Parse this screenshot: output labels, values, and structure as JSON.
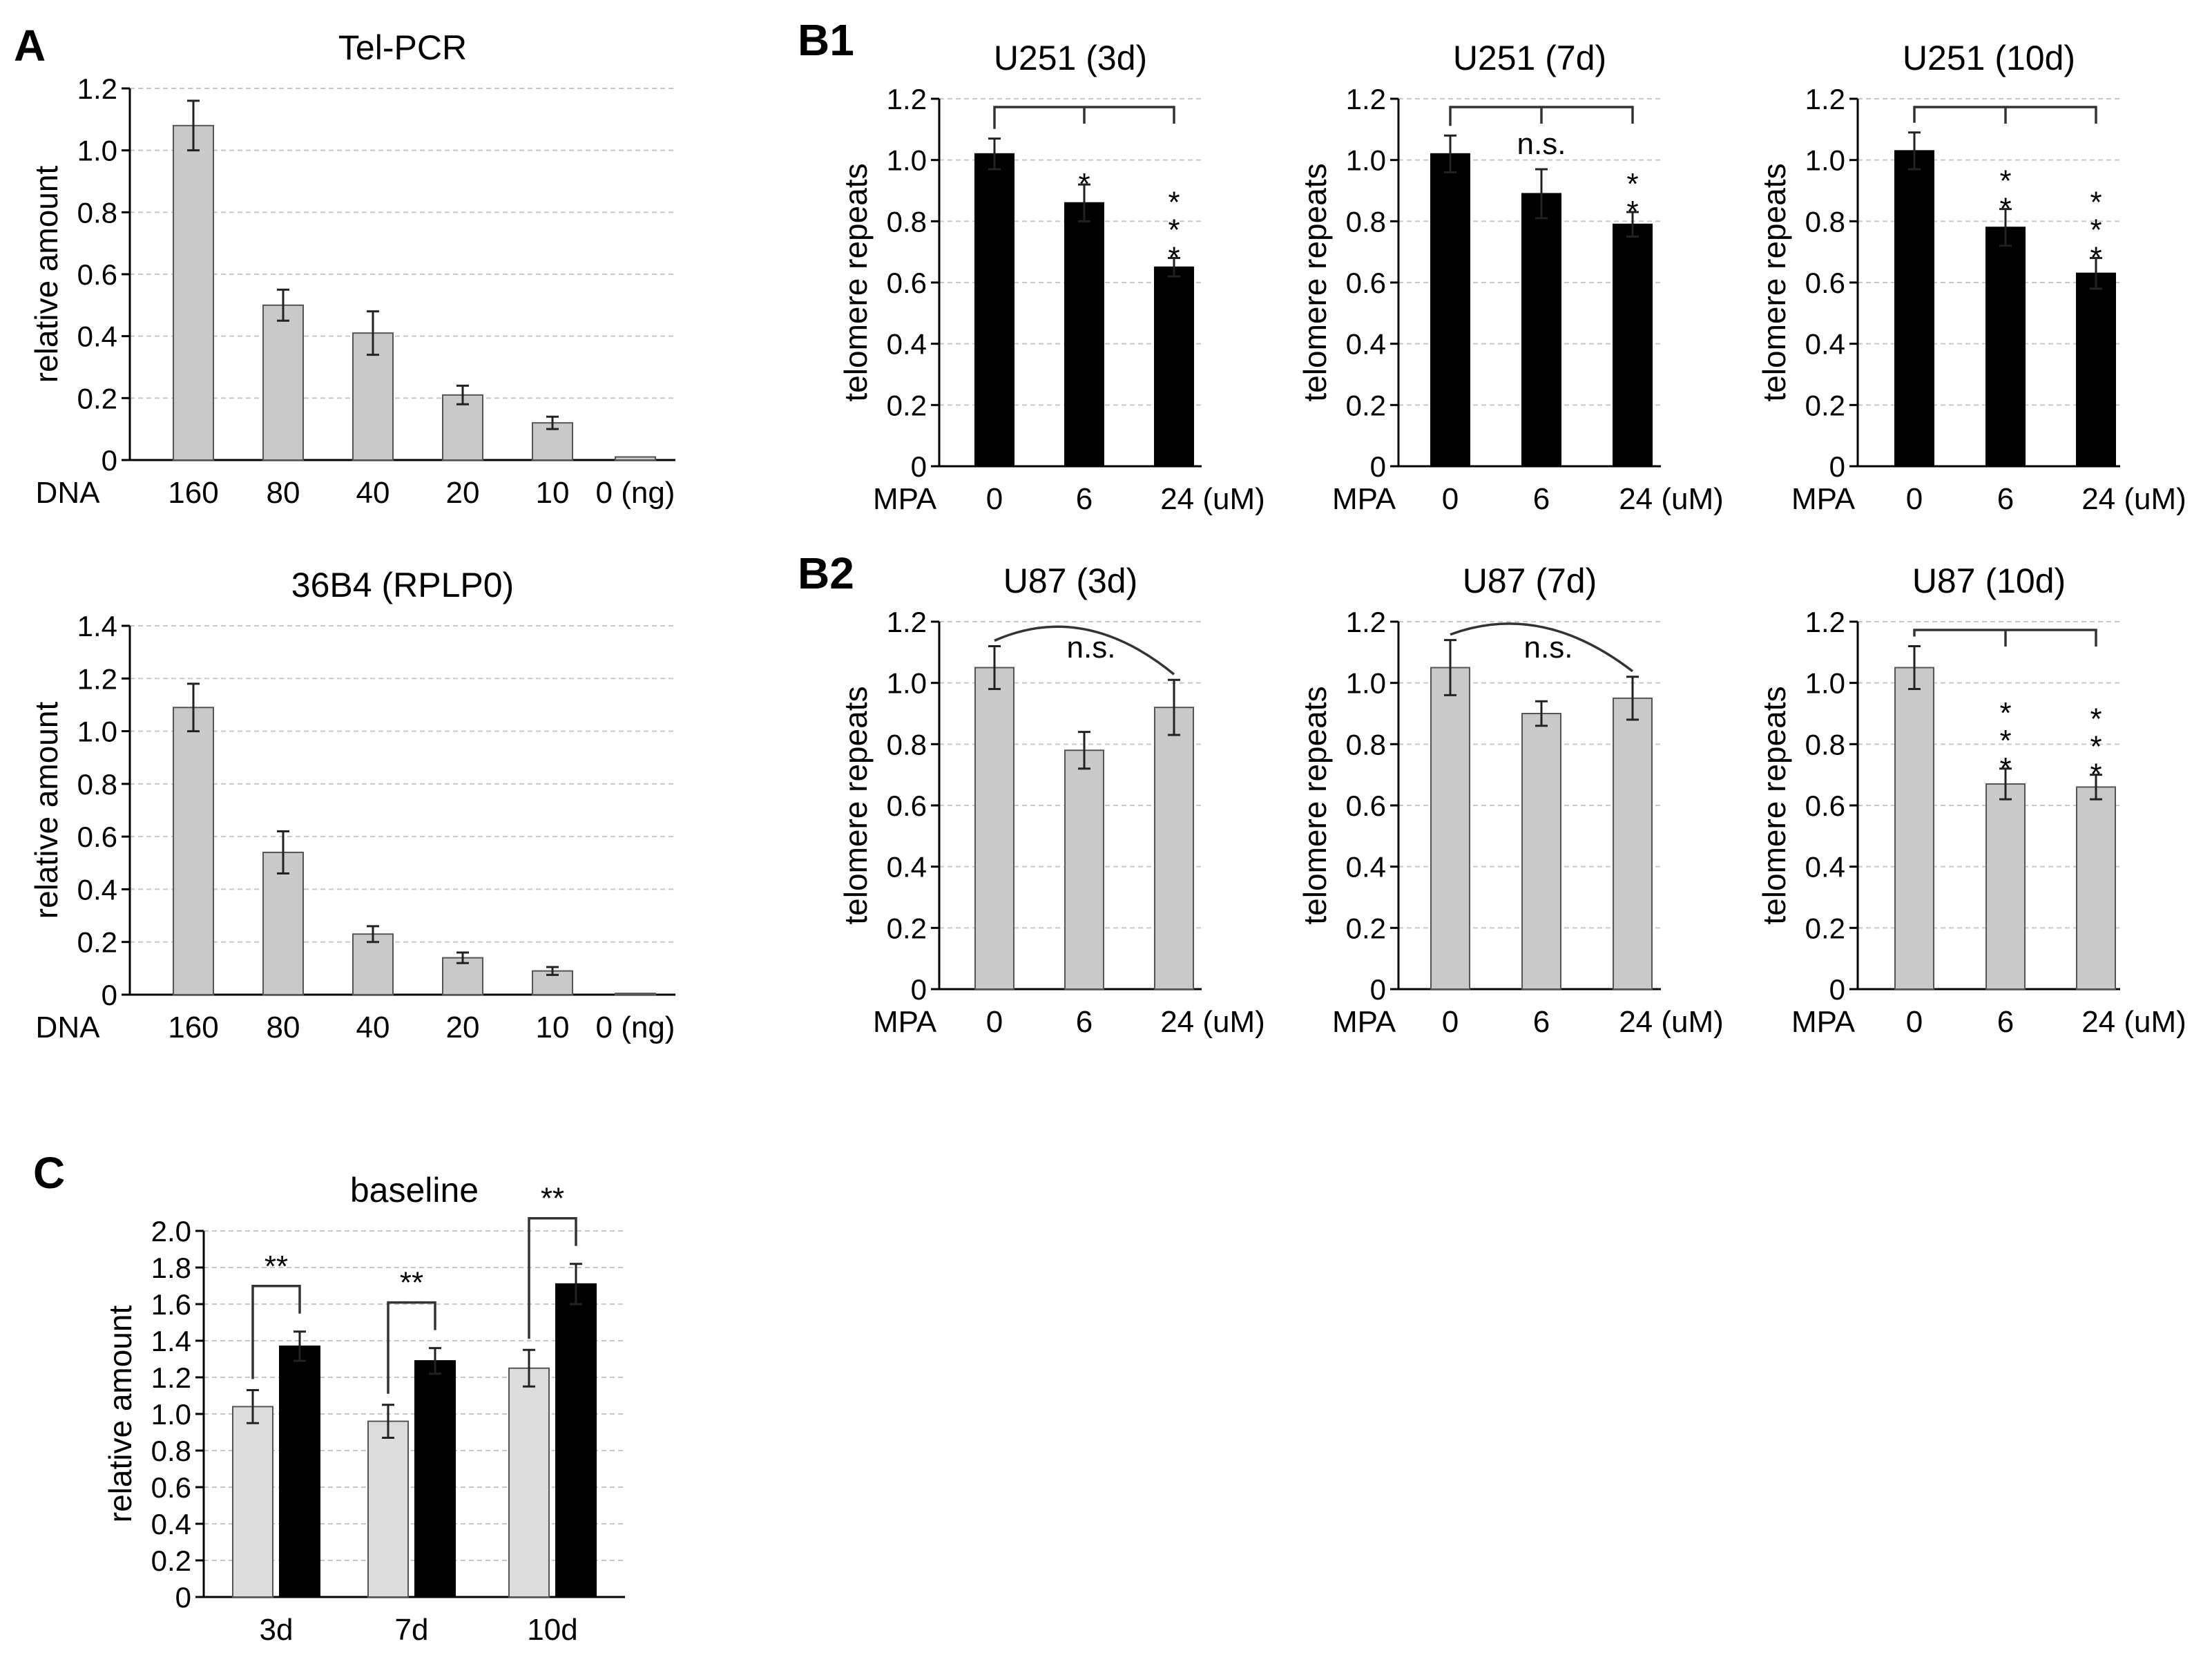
{
  "panel_labels": {
    "a": "A",
    "b1": "B1",
    "b2": "B2",
    "c": "C"
  },
  "colors": {
    "gray_bar": "#c9c9c9",
    "light_gray_bar": "#dcdcdc",
    "black_bar": "#000000",
    "bar_edge": "#555555",
    "grid": "#c8c8c8"
  },
  "chart_data": [
    {
      "id": "tel-pcr",
      "type": "bar",
      "title": "Tel-PCR",
      "ylabel": "relative amount",
      "x_prefix": "DNA",
      "categories": [
        "160",
        "80",
        "40",
        "20",
        "10",
        "0 (ng)"
      ],
      "ylim": [
        0,
        1.2
      ],
      "ytick_step": 0.2,
      "ytick_labels": [
        "0",
        "0.2",
        "0.4",
        "0.6",
        "0.8",
        "1.0",
        "1.2"
      ],
      "grid": true,
      "bar_color": "#c9c9c9",
      "values": [
        1.08,
        0.5,
        0.41,
        0.21,
        0.12,
        0.01
      ],
      "errors": [
        0.08,
        0.05,
        0.07,
        0.03,
        0.02,
        0.0
      ]
    },
    {
      "id": "36b4",
      "type": "bar",
      "title": "36B4 (RPLP0)",
      "ylabel": "relative amount",
      "x_prefix": "DNA",
      "categories": [
        "160",
        "80",
        "40",
        "20",
        "10",
        "0 (ng)"
      ],
      "ylim": [
        0,
        1.4
      ],
      "ytick_step": 0.2,
      "ytick_labels": [
        "0",
        "0.2",
        "0.4",
        "0.6",
        "0.8",
        "1.0",
        "1.2",
        "1.4"
      ],
      "grid": true,
      "bar_color": "#c9c9c9",
      "values": [
        1.09,
        0.54,
        0.23,
        0.14,
        0.09,
        0.005
      ],
      "errors": [
        0.09,
        0.08,
        0.03,
        0.02,
        0.015,
        0.0
      ]
    },
    {
      "id": "u251-3d",
      "type": "bar",
      "title": "U251 (3d)",
      "ylabel": "telomere repeats",
      "x_prefix": "MPA",
      "categories": [
        "0",
        "6",
        "24 (uM)"
      ],
      "ylim": [
        0,
        1.2
      ],
      "ytick_step": 0.2,
      "ytick_labels": [
        "0",
        "0.2",
        "0.4",
        "0.6",
        "0.8",
        "1.0",
        "1.2"
      ],
      "grid": true,
      "bar_color": "#000000",
      "values": [
        1.02,
        0.86,
        0.65
      ],
      "errors": [
        0.05,
        0.06,
        0.03
      ],
      "bracket": "tree",
      "significance": [
        "*",
        "***"
      ]
    },
    {
      "id": "u251-7d",
      "type": "bar",
      "title": "U251 (7d)",
      "ylabel": "telomere repeats",
      "x_prefix": "MPA",
      "categories": [
        "0",
        "6",
        "24 (uM)"
      ],
      "ylim": [
        0,
        1.2
      ],
      "ytick_step": 0.2,
      "ytick_labels": [
        "0",
        "0.2",
        "0.4",
        "0.6",
        "0.8",
        "1.0",
        "1.2"
      ],
      "grid": true,
      "bar_color": "#000000",
      "values": [
        1.02,
        0.89,
        0.79
      ],
      "errors": [
        0.06,
        0.08,
        0.04
      ],
      "bracket": "tree",
      "significance": [
        "n.s.",
        "**"
      ]
    },
    {
      "id": "u251-10d",
      "type": "bar",
      "title": "U251 (10d)",
      "ylabel": "telomere repeats",
      "x_prefix": "MPA",
      "categories": [
        "0",
        "6",
        "24 (uM)"
      ],
      "ylim": [
        0,
        1.2
      ],
      "ytick_step": 0.2,
      "ytick_labels": [
        "0",
        "0.2",
        "0.4",
        "0.6",
        "0.8",
        "1.0",
        "1.2"
      ],
      "grid": true,
      "bar_color": "#000000",
      "values": [
        1.03,
        0.78,
        0.63
      ],
      "errors": [
        0.06,
        0.06,
        0.05
      ],
      "bracket": "tree",
      "significance": [
        "**",
        "***"
      ]
    },
    {
      "id": "u87-3d",
      "type": "bar",
      "title": "U87 (3d)",
      "ylabel": "telomere repeats",
      "x_prefix": "MPA",
      "categories": [
        "0",
        "6",
        "24 (uM)"
      ],
      "ylim": [
        0,
        1.2
      ],
      "ytick_step": 0.2,
      "ytick_labels": [
        "0",
        "0.2",
        "0.4",
        "0.6",
        "0.8",
        "1.0",
        "1.2"
      ],
      "grid": true,
      "bar_color": "#c9c9c9",
      "values": [
        1.05,
        0.78,
        0.92
      ],
      "errors": [
        0.07,
        0.06,
        0.09
      ],
      "bracket": "arc",
      "arc_label": "n.s."
    },
    {
      "id": "u87-7d",
      "type": "bar",
      "title": "U87 (7d)",
      "ylabel": "telomere repeats",
      "x_prefix": "MPA",
      "categories": [
        "0",
        "6",
        "24 (uM)"
      ],
      "ylim": [
        0,
        1.2
      ],
      "ytick_step": 0.2,
      "ytick_labels": [
        "0",
        "0.2",
        "0.4",
        "0.6",
        "0.8",
        "1.0",
        "1.2"
      ],
      "grid": true,
      "bar_color": "#c9c9c9",
      "values": [
        1.05,
        0.9,
        0.95
      ],
      "errors": [
        0.09,
        0.04,
        0.07
      ],
      "bracket": "arc",
      "arc_label": "n.s."
    },
    {
      "id": "u87-10d",
      "type": "bar",
      "title": "U87 (10d)",
      "ylabel": "telomere repeats",
      "x_prefix": "MPA",
      "categories": [
        "0",
        "6",
        "24 (uM)"
      ],
      "ylim": [
        0,
        1.2
      ],
      "ytick_step": 0.2,
      "ytick_labels": [
        "0",
        "0.2",
        "0.4",
        "0.6",
        "0.8",
        "1.0",
        "1.2"
      ],
      "grid": true,
      "bar_color": "#c9c9c9",
      "values": [
        1.05,
        0.67,
        0.66
      ],
      "errors": [
        0.07,
        0.05,
        0.04
      ],
      "bracket": "tree",
      "significance": [
        "***",
        "***"
      ]
    },
    {
      "id": "baseline",
      "type": "bar",
      "title": "baseline",
      "ylabel": "relative amount",
      "categories": [
        "3d",
        "7d",
        "10d"
      ],
      "ylim": [
        0,
        2.0
      ],
      "ytick_step": 0.2,
      "ytick_labels": [
        "0",
        "0.2",
        "0.4",
        "0.6",
        "0.8",
        "1.0",
        "1.2",
        "1.4",
        "1.6",
        "1.8",
        "2.0"
      ],
      "grid": true,
      "series": [
        {
          "color": "#dcdcdc",
          "values": [
            1.04,
            0.96,
            1.25
          ],
          "errors": [
            0.09,
            0.09,
            0.1
          ]
        },
        {
          "color": "#000000",
          "values": [
            1.37,
            1.29,
            1.71
          ],
          "errors": [
            0.08,
            0.07,
            0.11
          ]
        }
      ],
      "pair_significance": [
        "**",
        "**",
        "**"
      ]
    }
  ]
}
